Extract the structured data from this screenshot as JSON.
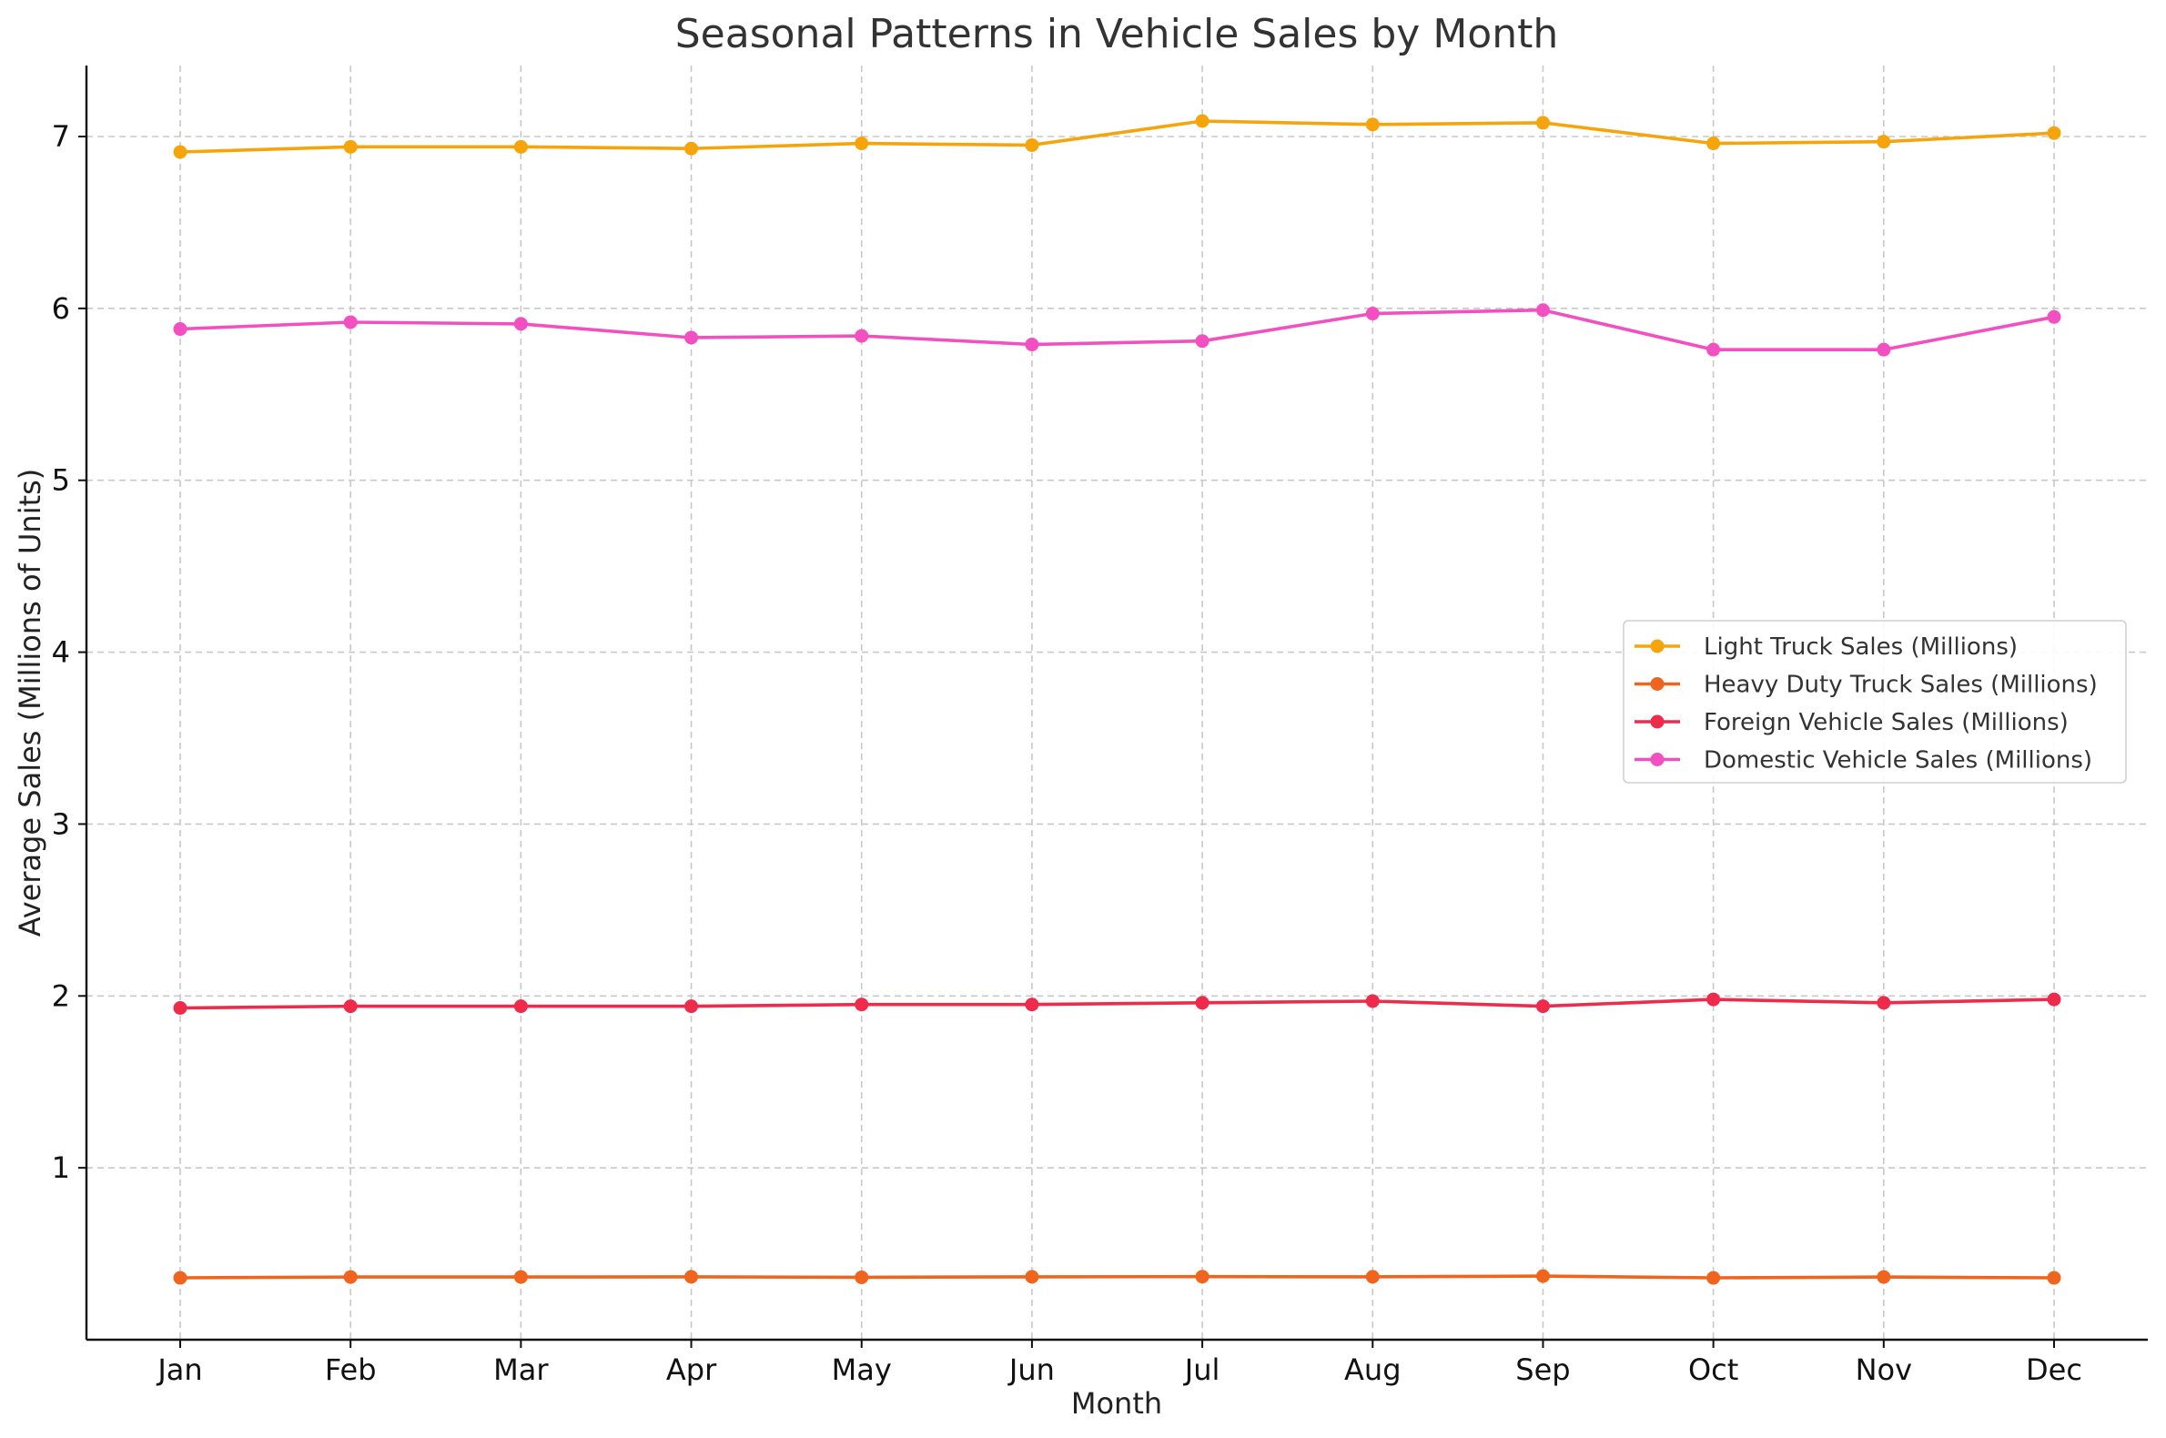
{
  "chart_data": {
    "type": "line",
    "title": "Seasonal Patterns in Vehicle Sales by Month",
    "xlabel": "Month",
    "ylabel": "Average Sales (Millions of Units)",
    "categories": [
      "Jan",
      "Feb",
      "Mar",
      "Apr",
      "May",
      "Jun",
      "Jul",
      "Aug",
      "Sep",
      "Oct",
      "Nov",
      "Dec"
    ],
    "ylim": [
      0,
      7.4
    ],
    "yticks": [
      1,
      2,
      3,
      4,
      5,
      6,
      7
    ],
    "grid": true,
    "legend_position": "center-right",
    "series": [
      {
        "name": "Light Truck Sales (Millions)",
        "color": "#f5a50b",
        "values": [
          6.91,
          6.94,
          6.94,
          6.93,
          6.96,
          6.95,
          7.09,
          7.07,
          7.08,
          6.96,
          6.97,
          7.02
        ]
      },
      {
        "name": "Heavy Duty Truck Sales (Millions)",
        "color": "#f0651e",
        "values": [
          0.36,
          0.365,
          0.365,
          0.366,
          0.363,
          0.366,
          0.367,
          0.366,
          0.37,
          0.36,
          0.365,
          0.36
        ]
      },
      {
        "name": "Foreign Vehicle Sales (Millions)",
        "color": "#ee2b4b",
        "values": [
          1.93,
          1.94,
          1.94,
          1.94,
          1.95,
          1.95,
          1.96,
          1.97,
          1.94,
          1.98,
          1.96,
          1.98
        ]
      },
      {
        "name": "Domestic Vehicle Sales (Millions)",
        "color": "#f250c0",
        "values": [
          5.88,
          5.92,
          5.91,
          5.83,
          5.84,
          5.79,
          5.81,
          5.97,
          5.99,
          5.76,
          5.76,
          5.95
        ]
      }
    ]
  }
}
